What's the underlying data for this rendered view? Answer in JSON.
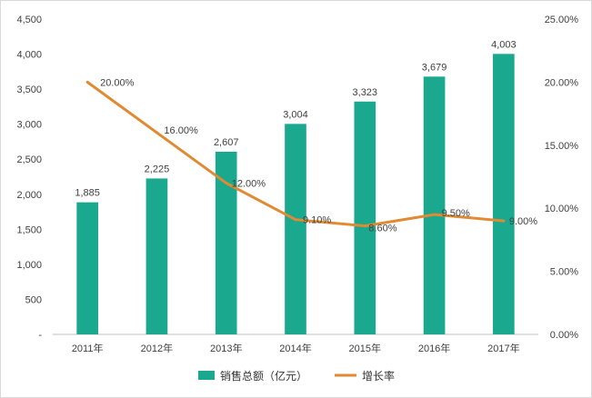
{
  "colors": {
    "bar": "#1aa88f",
    "line": "#e08a33",
    "axis": "#bfbfbf",
    "text": "#404040"
  },
  "legend": {
    "bar_label": "销售总额（亿元）",
    "line_label": "增长率"
  },
  "chart_data": {
    "type": "bar",
    "categories": [
      "2011年",
      "2012年",
      "2013年",
      "2014年",
      "2015年",
      "2016年",
      "2017年"
    ],
    "series": [
      {
        "name": "销售总额（亿元）",
        "type": "bar",
        "axis": "left",
        "values": [
          1885,
          2225,
          2607,
          3004,
          3323,
          3679,
          4003
        ],
        "labels": [
          "1,885",
          "2,225",
          "2,607",
          "3,004",
          "3,323",
          "3,679",
          "4,003"
        ]
      },
      {
        "name": "增长率",
        "type": "line",
        "axis": "right",
        "values": [
          20.0,
          16.0,
          12.0,
          9.1,
          8.6,
          9.5,
          9.0
        ],
        "labels": [
          "20.00%",
          "16.00%",
          "12.00%",
          "9.10%",
          "8.60%",
          "9.50%",
          "9.00%"
        ]
      }
    ],
    "y_left": {
      "ylim": [
        0,
        4500
      ],
      "ticks": [
        0,
        500,
        1000,
        1500,
        2000,
        2500,
        3000,
        3500,
        4000,
        4500
      ],
      "tick_labels": [
        "-",
        "500",
        "1,000",
        "1,500",
        "2,000",
        "2,500",
        "3,000",
        "3,500",
        "4,000",
        "4,500"
      ]
    },
    "y_right": {
      "ylim": [
        0,
        25
      ],
      "ticks": [
        0,
        5,
        10,
        15,
        20,
        25
      ],
      "tick_labels": [
        "0.00%",
        "5.00%",
        "10.00%",
        "15.00%",
        "20.00%",
        "25.00%"
      ]
    },
    "grid": false,
    "legend_position": "bottom-center"
  }
}
